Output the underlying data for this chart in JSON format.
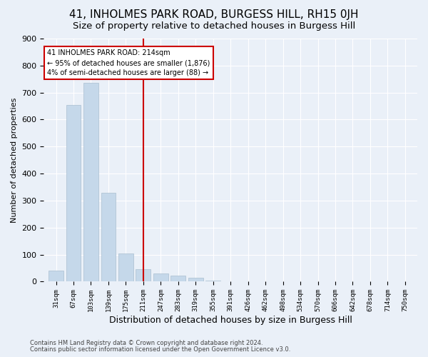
{
  "title": "41, INHOLMES PARK ROAD, BURGESS HILL, RH15 0JH",
  "subtitle": "Size of property relative to detached houses in Burgess Hill",
  "xlabel": "Distribution of detached houses by size in Burgess Hill",
  "ylabel": "Number of detached properties",
  "footer_line1": "Contains HM Land Registry data © Crown copyright and database right 2024.",
  "footer_line2": "Contains public sector information licensed under the Open Government Licence v3.0.",
  "annotation_line1": "41 INHOLMES PARK ROAD: 214sqm",
  "annotation_line2": "← 95% of detached houses are smaller (1,876)",
  "annotation_line3": "4% of semi-detached houses are larger (88) →",
  "property_size": 214,
  "bar_color": "#c5d8ea",
  "bar_edge_color": "#aabfcf",
  "vline_color": "#cc0000",
  "vline_x": 5,
  "categories": [
    "31sqm",
    "67sqm",
    "103sqm",
    "139sqm",
    "175sqm",
    "211sqm",
    "247sqm",
    "283sqm",
    "319sqm",
    "355sqm",
    "391sqm",
    "426sqm",
    "462sqm",
    "498sqm",
    "534sqm",
    "570sqm",
    "606sqm",
    "642sqm",
    "678sqm",
    "714sqm",
    "750sqm"
  ],
  "bin_centers": [
    0,
    1,
    2,
    3,
    4,
    5,
    6,
    7,
    8,
    9,
    10,
    11,
    12,
    13,
    14,
    15,
    16,
    17,
    18,
    19,
    20
  ],
  "vline_bin": 5,
  "bin_width": 36,
  "values": [
    40,
    655,
    735,
    330,
    105,
    45,
    30,
    22,
    15,
    5,
    0,
    1,
    0,
    0,
    0,
    0,
    0,
    0,
    0,
    0,
    0
  ],
  "ylim": [
    0,
    900
  ],
  "yticks": [
    0,
    100,
    200,
    300,
    400,
    500,
    600,
    700,
    800,
    900
  ],
  "background_color": "#eaf0f8",
  "plot_bg_color": "#eaf0f8",
  "grid_color": "#ffffff",
  "title_fontsize": 11,
  "subtitle_fontsize": 9.5,
  "annotation_box_color": "#ffffff",
  "annotation_border_color": "#cc0000",
  "footer_fontsize": 6,
  "ylabel_fontsize": 8,
  "xlabel_fontsize": 9
}
